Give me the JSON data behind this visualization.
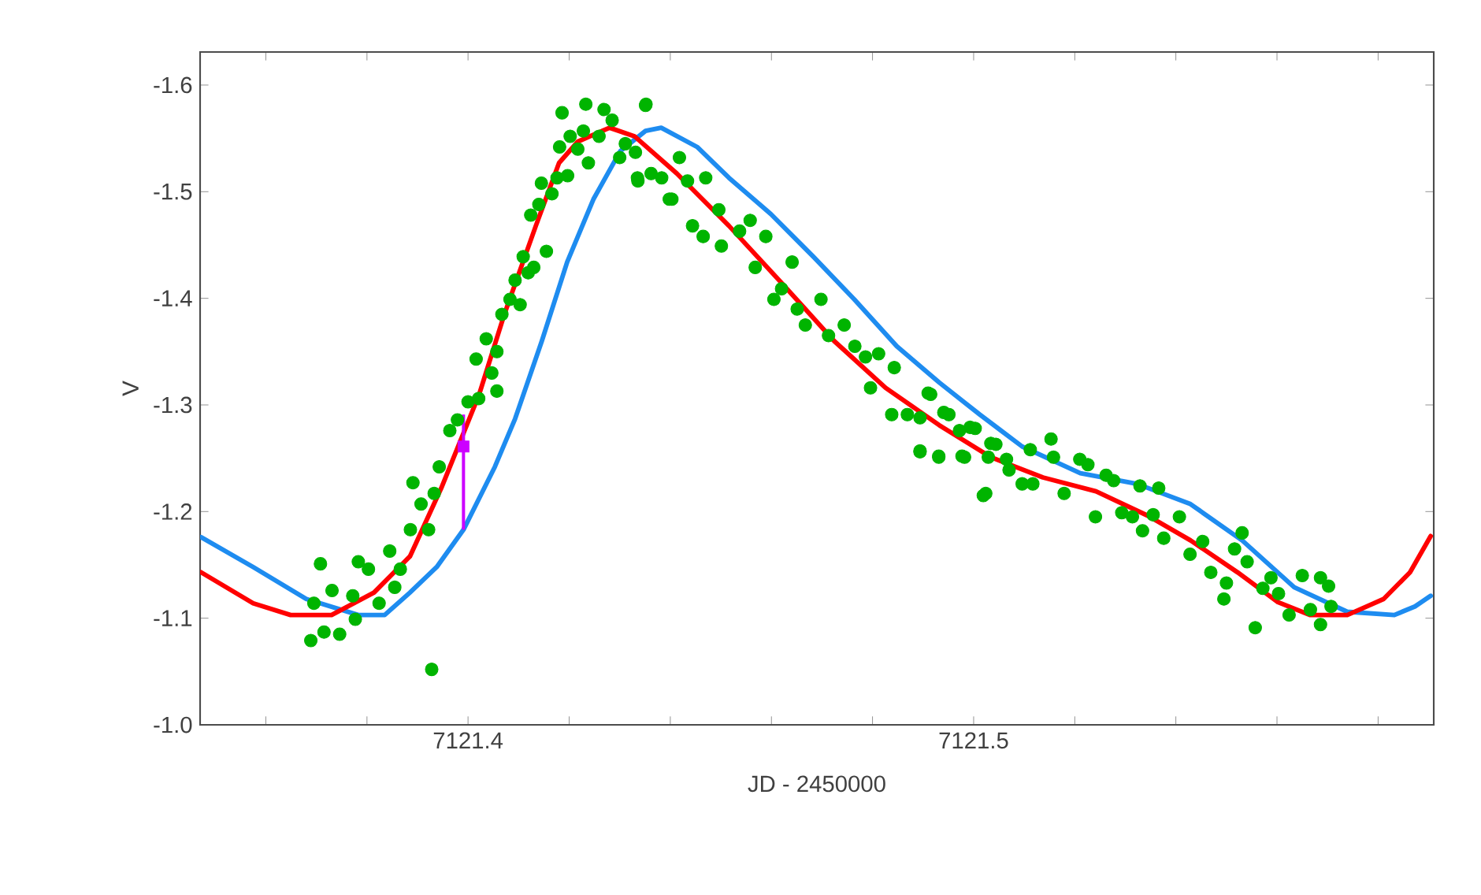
{
  "chart_data": {
    "type": "scatter",
    "xlabel": "JD - 2450000",
    "ylabel": "V",
    "xlim": [
      7121.347,
      7121.591
    ],
    "ylim": [
      -1.0,
      -1.631
    ],
    "xticks": [
      {
        "value": 7121.36,
        "label": null
      },
      {
        "value": 7121.38,
        "label": null
      },
      7121.4,
      {
        "value": 7121.42,
        "label": null
      },
      {
        "value": 7121.44,
        "label": null
      },
      {
        "value": 7121.46,
        "label": null
      },
      {
        "value": 7121.48,
        "label": null
      },
      7121.5,
      {
        "value": 7121.52,
        "label": null
      },
      {
        "value": 7121.54,
        "label": null
      },
      {
        "value": 7121.56,
        "label": null
      },
      {
        "value": 7121.58,
        "label": null
      }
    ],
    "yticks": [
      -1.6,
      -1.5,
      -1.4,
      -1.3,
      -1.2,
      -1.1,
      {
        "value": -1.0,
        "label": "-1.0"
      }
    ],
    "grid": false,
    "series": [
      {
        "color": "#00b400",
        "marker": "circle",
        "x": [
          7121.3689,
          7121.3715,
          7121.3746,
          7121.3708,
          7121.3695,
          7121.3731,
          7121.3772,
          7121.3783,
          7121.3803,
          7121.3777,
          7121.3824,
          7121.3845,
          7121.3866,
          7121.3855,
          7121.3886,
          7121.3922,
          7121.3891,
          7121.3907,
          7121.3933,
          7121.3943,
          7121.3964,
          7121.3979,
          7121.4,
          7121.4021,
          7121.4016,
          7121.4036,
          7121.4047,
          7121.4057,
          7121.4057,
          7121.4067,
          7121.4083,
          7121.4093,
          7121.4103,
          7121.4119,
          7121.4109,
          7121.413,
          7121.4124,
          7121.414,
          7121.4145,
          7121.4155,
          7121.4166,
          7121.4176,
          7121.4181,
          7121.4186,
          7121.4197,
          7121.4202,
          7121.4217,
          7121.4233,
          7121.4228,
          7121.4238,
          7121.4259,
          7121.4269,
          7121.4285,
          7121.43,
          7121.4311,
          7121.4331,
          7121.4336,
          7121.4352,
          7121.4362,
          7121.4383,
          7121.4398,
          7121.3928,
          7121.4351,
          7121.4335,
          7121.4403,
          7121.4418,
          7121.4434,
          7121.447,
          7121.4444,
          7121.4465,
          7121.4496,
          7121.4501,
          7121.4537,
          7121.4558,
          7121.4568,
          7121.4589,
          7121.4605,
          7121.4641,
          7121.462,
          7121.4651,
          7121.4667,
          7121.4698,
          7121.4713,
          7121.4744,
          7121.4765,
          7121.4786,
          7121.4812,
          7121.4796,
          7121.4843,
          7121.4838,
          7121.4869,
          7121.4894,
          7121.4931,
          7121.491,
          7121.4951,
          7121.4977,
          7121.4993,
          7121.5019,
          7121.5034,
          7121.5065,
          7121.4915,
          7121.4894,
          7121.4894,
          7121.4931,
          7121.4941,
          7121.4972,
          7121.4982,
          7121.5003,
          7121.5024,
          7121.5029,
          7121.5044,
          7121.507,
          7121.5096,
          7121.5117,
          7121.5112,
          7121.5153,
          7121.5158,
          7121.5179,
          7121.521,
          7121.5226,
          7121.5241,
          7121.5262,
          7121.5277,
          7121.5293,
          7121.5314,
          7121.5334,
          7121.5329,
          7121.5366,
          7121.5355,
          7121.5376,
          7121.5407,
          7121.5428,
          7121.5453,
          7121.5469,
          7121.55,
          7121.5495,
          7121.5516,
          7121.5531,
          7121.5541,
          7121.5557,
          7121.5572,
          7121.5588,
          7121.5603,
          7121.5624,
          7121.565,
          7121.5666,
          7121.5686,
          7121.5686,
          7121.5702,
          7121.5707
        ],
        "values": [
          -1.079,
          -1.087,
          -1.085,
          -1.151,
          -1.114,
          -1.126,
          -1.121,
          -1.153,
          -1.146,
          -1.099,
          -1.114,
          -1.163,
          -1.146,
          -1.129,
          -1.183,
          -1.183,
          -1.227,
          -1.207,
          -1.217,
          -1.242,
          -1.276,
          -1.286,
          -1.303,
          -1.306,
          -1.343,
          -1.362,
          -1.33,
          -1.313,
          -1.35,
          -1.385,
          -1.399,
          -1.417,
          -1.394,
          -1.424,
          -1.439,
          -1.429,
          -1.478,
          -1.488,
          -1.508,
          -1.444,
          -1.498,
          -1.513,
          -1.542,
          -1.574,
          -1.515,
          -1.552,
          -1.54,
          -1.582,
          -1.557,
          -1.527,
          -1.552,
          -1.577,
          -1.567,
          -1.532,
          -1.545,
          -1.537,
          -1.51,
          -1.582,
          -1.517,
          -1.513,
          -1.493,
          -1.052,
          -1.581,
          -1.513,
          -1.493,
          -1.532,
          -1.51,
          -1.513,
          -1.468,
          -1.458,
          -1.483,
          -1.449,
          -1.463,
          -1.473,
          -1.429,
          -1.458,
          -1.399,
          -1.434,
          -1.409,
          -1.39,
          -1.375,
          -1.399,
          -1.365,
          -1.375,
          -1.355,
          -1.345,
          -1.348,
          -1.316,
          -1.335,
          -1.291,
          -1.291,
          -1.257,
          -1.252,
          -1.311,
          -1.291,
          -1.252,
          -1.279,
          -1.215,
          -1.264,
          -1.249,
          -1.31,
          -1.288,
          -1.256,
          -1.251,
          -1.293,
          -1.276,
          -1.251,
          -1.278,
          -1.217,
          -1.251,
          -1.263,
          -1.239,
          -1.226,
          -1.226,
          -1.258,
          -1.268,
          -1.251,
          -1.217,
          -1.249,
          -1.244,
          -1.195,
          -1.234,
          -1.229,
          -1.199,
          -1.195,
          -1.182,
          -1.224,
          -1.222,
          -1.197,
          -1.175,
          -1.195,
          -1.16,
          -1.172,
          -1.143,
          -1.133,
          -1.118,
          -1.165,
          -1.18,
          -1.153,
          -1.091,
          -1.128,
          -1.138,
          -1.123,
          -1.103,
          -1.14,
          -1.108,
          -1.094,
          -1.138,
          -1.13,
          -1.111
        ]
      },
      {
        "type": "line",
        "color": "#1e8cf0",
        "marker": "none",
        "line_style": "solid",
        "x": [
          7121.3472,
          7121.3575,
          7121.368,
          7121.3783,
          7121.3835,
          7121.3885,
          7121.3938,
          7121.3991,
          7121.4053,
          7121.4093,
          7121.4146,
          7121.4196,
          7121.4248,
          7121.4301,
          7121.4351,
          7121.4382,
          7121.4453,
          7121.4516,
          7121.4599,
          7121.4683,
          7121.4764,
          7121.4848,
          7121.4932,
          7121.5012,
          7121.5096,
          7121.5211,
          7121.5323,
          7121.5429,
          7121.5531,
          7121.5634,
          7121.5739,
          7121.5832,
          7121.5873,
          7121.5904
        ],
        "values": [
          -1.176,
          -1.148,
          -1.118,
          -1.103,
          -1.103,
          -1.124,
          -1.148,
          -1.183,
          -1.242,
          -1.287,
          -1.36,
          -1.434,
          -1.493,
          -1.538,
          -1.557,
          -1.56,
          -1.542,
          -1.513,
          -1.479,
          -1.439,
          -1.399,
          -1.355,
          -1.321,
          -1.291,
          -1.261,
          -1.236,
          -1.226,
          -1.207,
          -1.173,
          -1.129,
          -1.106,
          -1.103,
          -1.111,
          -1.121
        ]
      },
      {
        "type": "line",
        "color": "#ff0000",
        "marker": "none",
        "line_style": "solid",
        "x": [
          7121.3472,
          7121.3575,
          7121.3649,
          7121.373,
          7121.3814,
          7121.3885,
          7121.3947,
          7121.4022,
          7121.4071,
          7121.4134,
          7121.418,
          7121.4217,
          7121.428,
          7121.4329,
          7121.4413,
          7121.4516,
          7121.4621,
          7121.4724,
          7121.4826,
          7121.4932,
          7121.5034,
          7121.5137,
          7121.5242,
          7121.5345,
          7121.5429,
          7121.5522,
          7121.5602,
          7121.5665,
          7121.5739,
          7121.5811,
          7121.5863,
          7121.5904
        ],
        "values": [
          -1.143,
          -1.114,
          -1.103,
          -1.103,
          -1.124,
          -1.158,
          -1.222,
          -1.31,
          -1.384,
          -1.468,
          -1.527,
          -1.547,
          -1.56,
          -1.552,
          -1.517,
          -1.468,
          -1.414,
          -1.36,
          -1.316,
          -1.281,
          -1.251,
          -1.232,
          -1.219,
          -1.196,
          -1.173,
          -1.143,
          -1.115,
          -1.103,
          -1.103,
          -1.118,
          -1.143,
          -1.177
        ]
      },
      {
        "color": "#cc00ff",
        "marker": "square",
        "x": [
          7121.3991
        ],
        "values": [
          -1.261
        ],
        "errors": [
          [
            -1.291,
            -1.183
          ]
        ]
      }
    ]
  }
}
